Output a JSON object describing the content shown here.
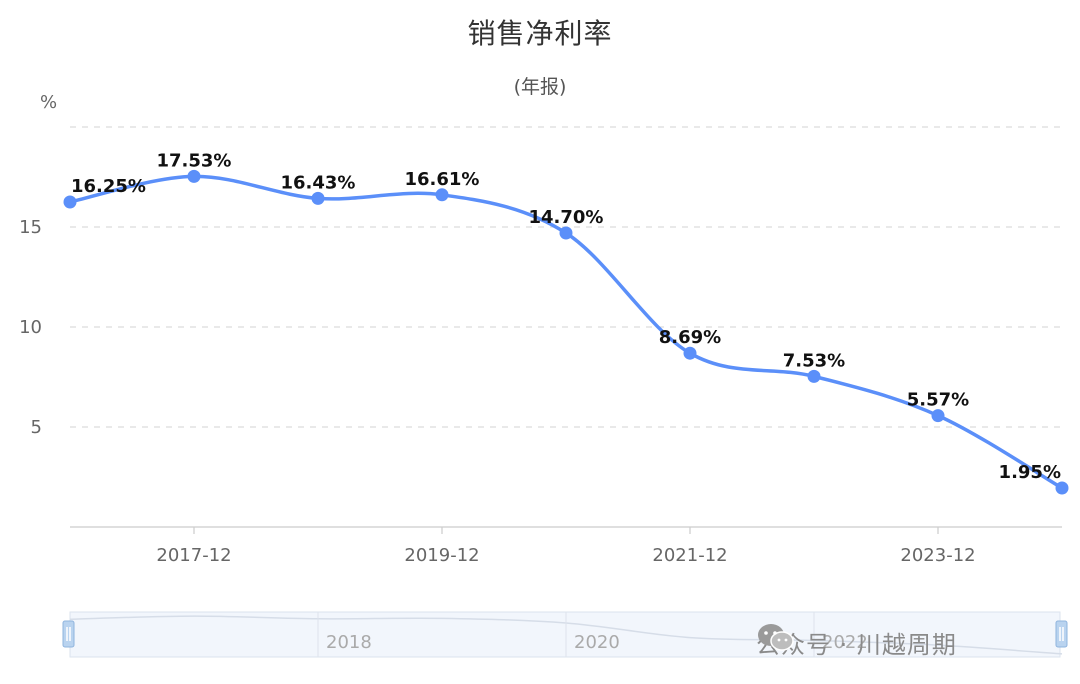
{
  "chart_data": {
    "type": "line",
    "title": "销售净利率",
    "subtitle": "(年报)",
    "ylabel": "%",
    "x": [
      "2016-12",
      "2017-12",
      "2018-12",
      "2019-12",
      "2020-12",
      "2021-12",
      "2022-12",
      "2023-12",
      "2024-12"
    ],
    "series": [
      {
        "values": [
          16.25,
          17.53,
          16.43,
          16.61,
          14.7,
          8.69,
          7.53,
          5.57,
          1.95
        ],
        "labels": [
          "16.25%",
          "17.53%",
          "16.43%",
          "16.61%",
          "14.70%",
          "8.69%",
          "7.53%",
          "5.57%",
          "1.95%"
        ],
        "color": "#5b8ff9"
      }
    ],
    "ylim": [
      0,
      20
    ],
    "yticks": [
      "5",
      "10",
      "15"
    ],
    "xtick_labels": [
      "2017-12",
      "2019-12",
      "2021-12",
      "2023-12"
    ],
    "grid": true,
    "legend": "none"
  },
  "zoom_slider": {
    "labels": [
      "2018",
      "2020",
      "2022"
    ]
  },
  "watermark": {
    "text": "公众号 · 川越周期",
    "icon": "wechat-icon"
  }
}
